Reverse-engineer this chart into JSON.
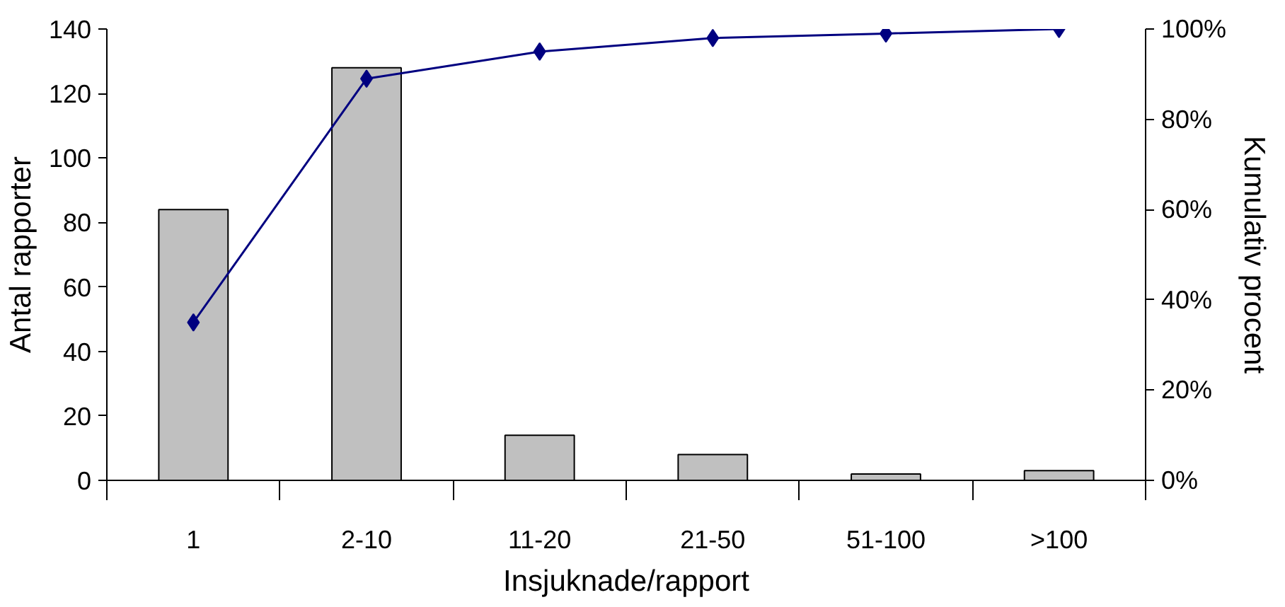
{
  "chart_data": {
    "type": "bar",
    "categories": [
      "1",
      "2-10",
      "11-20",
      "21-50",
      "51-100",
      ">100"
    ],
    "xlabel": "Insjuknade/rapport",
    "ylabel": "Antal rapporter",
    "y2label": "Kumulativ procent",
    "ylim": [
      0,
      140
    ],
    "yticks": [
      0,
      20,
      40,
      60,
      80,
      100,
      120,
      140
    ],
    "y2lim": [
      0,
      100
    ],
    "y2ticks": [
      {
        "value": 0,
        "label": "0%"
      },
      {
        "value": 20,
        "label": "20%"
      },
      {
        "value": 40,
        "label": "40%"
      },
      {
        "value": 60,
        "label": "60%"
      },
      {
        "value": 80,
        "label": "80%"
      },
      {
        "value": 100,
        "label": "100%"
      }
    ],
    "marker": "diamond",
    "series": [
      {
        "color": "#c0c0c0",
        "values": [
          84,
          128,
          14,
          8,
          2,
          3
        ]
      },
      {
        "type": "line",
        "axis": "y2",
        "color": "#000080",
        "values": [
          35,
          89,
          95,
          98,
          99,
          100
        ]
      }
    ]
  }
}
